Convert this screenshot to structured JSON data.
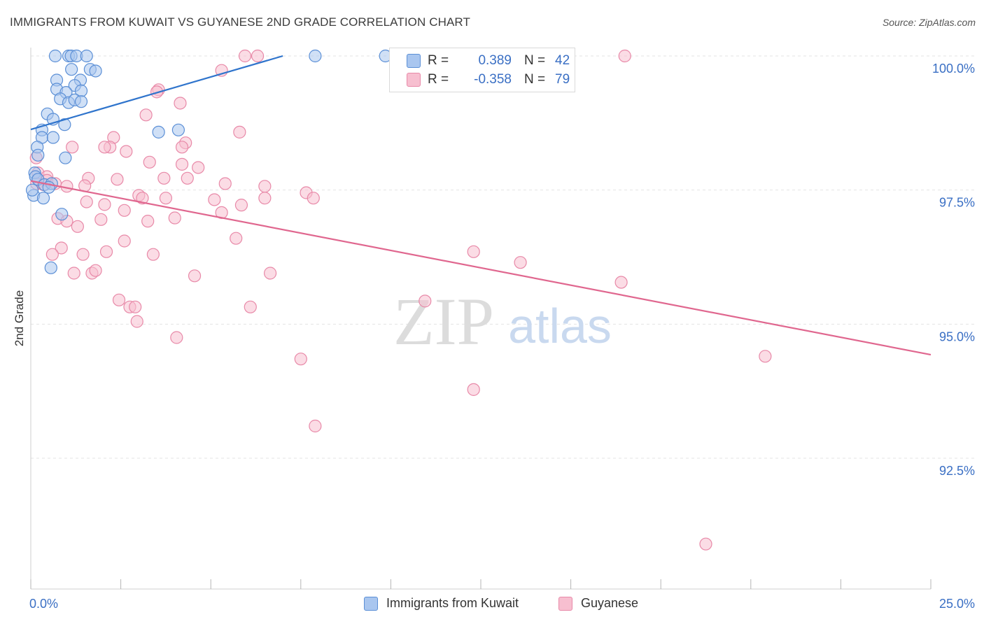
{
  "title": "IMMIGRANTS FROM KUWAIT VS GUYANESE 2ND GRADE CORRELATION CHART",
  "source": "Source: ZipAtlas.com",
  "watermark": {
    "zip": "ZIP",
    "atlas": "atlas"
  },
  "legend": {
    "rows": [
      {
        "r_label": "R =",
        "r_value": "0.389",
        "n_label": "N =",
        "n_value": "42"
      },
      {
        "r_label": "R =",
        "r_value": "-0.358",
        "n_label": "N =",
        "n_value": "79"
      }
    ]
  },
  "bottom_legend": [
    "Immigrants from Kuwait",
    "Guyanese"
  ],
  "colors": {
    "blue_fill": "#a9c6ef",
    "blue_stroke": "#5b8fd6",
    "blue_line": "#2f74cc",
    "pink_fill": "#f7bfd0",
    "pink_stroke": "#e889a8",
    "pink_line": "#e0678f",
    "tick_text": "#3a6fc4",
    "grid": "#e3e3e3"
  },
  "chart_data": {
    "type": "scatter",
    "title": "IMMIGRANTS FROM KUWAIT VS GUYANESE 2ND GRADE CORRELATION CHART",
    "xlabel": "",
    "ylabel": "2nd Grade",
    "xlim": [
      0,
      25
    ],
    "ylim": [
      90.2,
      100.25
    ],
    "x_tick_labels": [
      {
        "value": 0,
        "label": "0.0%"
      },
      {
        "value": 25,
        "label": "25.0%"
      }
    ],
    "y_tick_labels": [
      {
        "value": 100,
        "label": "100.0%"
      },
      {
        "value": 97.5,
        "label": "97.5%"
      },
      {
        "value": 95,
        "label": "95.0%"
      },
      {
        "value": 92.5,
        "label": "92.5%"
      }
    ],
    "series": [
      {
        "name": "Immigrants from Kuwait",
        "R": 0.389,
        "N": 42,
        "trend": {
          "x": [
            0,
            7.0
          ],
          "y": [
            98.63,
            100.0
          ]
        },
        "points": [
          [
            0.68,
            100
          ],
          [
            1.05,
            100
          ],
          [
            1.12,
            100
          ],
          [
            1.27,
            100
          ],
          [
            1.55,
            100
          ],
          [
            7.9,
            100
          ],
          [
            9.85,
            100
          ],
          [
            1.13,
            99.75
          ],
          [
            1.65,
            99.75
          ],
          [
            1.8,
            99.72
          ],
          [
            0.72,
            99.55
          ],
          [
            1.38,
            99.55
          ],
          [
            1.22,
            99.45
          ],
          [
            0.72,
            99.38
          ],
          [
            0.98,
            99.32
          ],
          [
            1.4,
            99.35
          ],
          [
            0.82,
            99.2
          ],
          [
            1.05,
            99.13
          ],
          [
            1.22,
            99.18
          ],
          [
            1.4,
            99.15
          ],
          [
            0.46,
            98.92
          ],
          [
            0.62,
            98.82
          ],
          [
            0.94,
            98.72
          ],
          [
            0.31,
            98.62
          ],
          [
            3.55,
            98.58
          ],
          [
            4.1,
            98.62
          ],
          [
            0.31,
            98.48
          ],
          [
            0.62,
            98.48
          ],
          [
            0.18,
            98.3
          ],
          [
            0.2,
            98.15
          ],
          [
            0.96,
            98.1
          ],
          [
            0.11,
            97.82
          ],
          [
            0.13,
            97.75
          ],
          [
            0.2,
            97.7
          ],
          [
            0.38,
            97.6
          ],
          [
            0.58,
            97.62
          ],
          [
            0.5,
            97.55
          ],
          [
            0.08,
            97.4
          ],
          [
            0.35,
            97.35
          ],
          [
            0.86,
            97.05
          ],
          [
            0.56,
            96.05
          ],
          [
            0.04,
            97.5
          ]
        ]
      },
      {
        "name": "Guyanese",
        "R": -0.358,
        "N": 79,
        "trend": {
          "x": [
            0,
            25
          ],
          "y": [
            97.67,
            94.43
          ]
        },
        "points": [
          [
            5.95,
            100
          ],
          [
            6.3,
            100
          ],
          [
            16.5,
            100
          ],
          [
            5.3,
            99.73
          ],
          [
            3.55,
            99.37
          ],
          [
            3.5,
            99.33
          ],
          [
            4.15,
            99.12
          ],
          [
            3.2,
            98.9
          ],
          [
            5.8,
            98.58
          ],
          [
            2.3,
            98.48
          ],
          [
            2.2,
            98.3
          ],
          [
            2.05,
            98.3
          ],
          [
            4.3,
            98.38
          ],
          [
            4.2,
            98.3
          ],
          [
            0.15,
            98.1
          ],
          [
            1.15,
            98.3
          ],
          [
            2.65,
            98.22
          ],
          [
            3.3,
            98.02
          ],
          [
            4.2,
            97.98
          ],
          [
            4.65,
            97.92
          ],
          [
            0.2,
            97.82
          ],
          [
            0.45,
            97.75
          ],
          [
            1.6,
            97.72
          ],
          [
            2.4,
            97.7
          ],
          [
            3.7,
            97.72
          ],
          [
            4.35,
            97.72
          ],
          [
            5.4,
            97.62
          ],
          [
            6.5,
            97.57
          ],
          [
            0.16,
            97.62
          ],
          [
            0.35,
            97.6
          ],
          [
            0.45,
            97.68
          ],
          [
            0.68,
            97.62
          ],
          [
            1.0,
            97.57
          ],
          [
            1.5,
            97.58
          ],
          [
            3.0,
            97.4
          ],
          [
            3.1,
            97.35
          ],
          [
            3.75,
            97.35
          ],
          [
            5.1,
            97.32
          ],
          [
            6.5,
            97.35
          ],
          [
            7.65,
            97.45
          ],
          [
            7.85,
            97.35
          ],
          [
            1.55,
            97.28
          ],
          [
            2.05,
            97.23
          ],
          [
            2.6,
            97.12
          ],
          [
            5.85,
            97.22
          ],
          [
            5.3,
            97.08
          ],
          [
            0.75,
            96.97
          ],
          [
            1.0,
            96.92
          ],
          [
            1.3,
            96.82
          ],
          [
            1.95,
            96.95
          ],
          [
            3.25,
            96.92
          ],
          [
            4.0,
            96.98
          ],
          [
            2.6,
            96.55
          ],
          [
            5.7,
            96.6
          ],
          [
            0.85,
            96.42
          ],
          [
            0.6,
            96.3
          ],
          [
            1.45,
            96.3
          ],
          [
            2.1,
            96.35
          ],
          [
            3.4,
            96.3
          ],
          [
            12.3,
            96.35
          ],
          [
            13.6,
            96.15
          ],
          [
            1.2,
            95.95
          ],
          [
            1.7,
            95.95
          ],
          [
            1.8,
            96.0
          ],
          [
            4.55,
            95.9
          ],
          [
            6.65,
            95.95
          ],
          [
            16.4,
            95.78
          ],
          [
            2.45,
            95.45
          ],
          [
            2.75,
            95.32
          ],
          [
            2.9,
            95.32
          ],
          [
            10.95,
            95.43
          ],
          [
            6.1,
            95.32
          ],
          [
            2.95,
            95.05
          ],
          [
            4.05,
            94.75
          ],
          [
            7.5,
            94.35
          ],
          [
            20.4,
            94.4
          ],
          [
            12.3,
            93.78
          ],
          [
            7.9,
            93.1
          ],
          [
            18.75,
            90.9
          ]
        ]
      }
    ]
  }
}
